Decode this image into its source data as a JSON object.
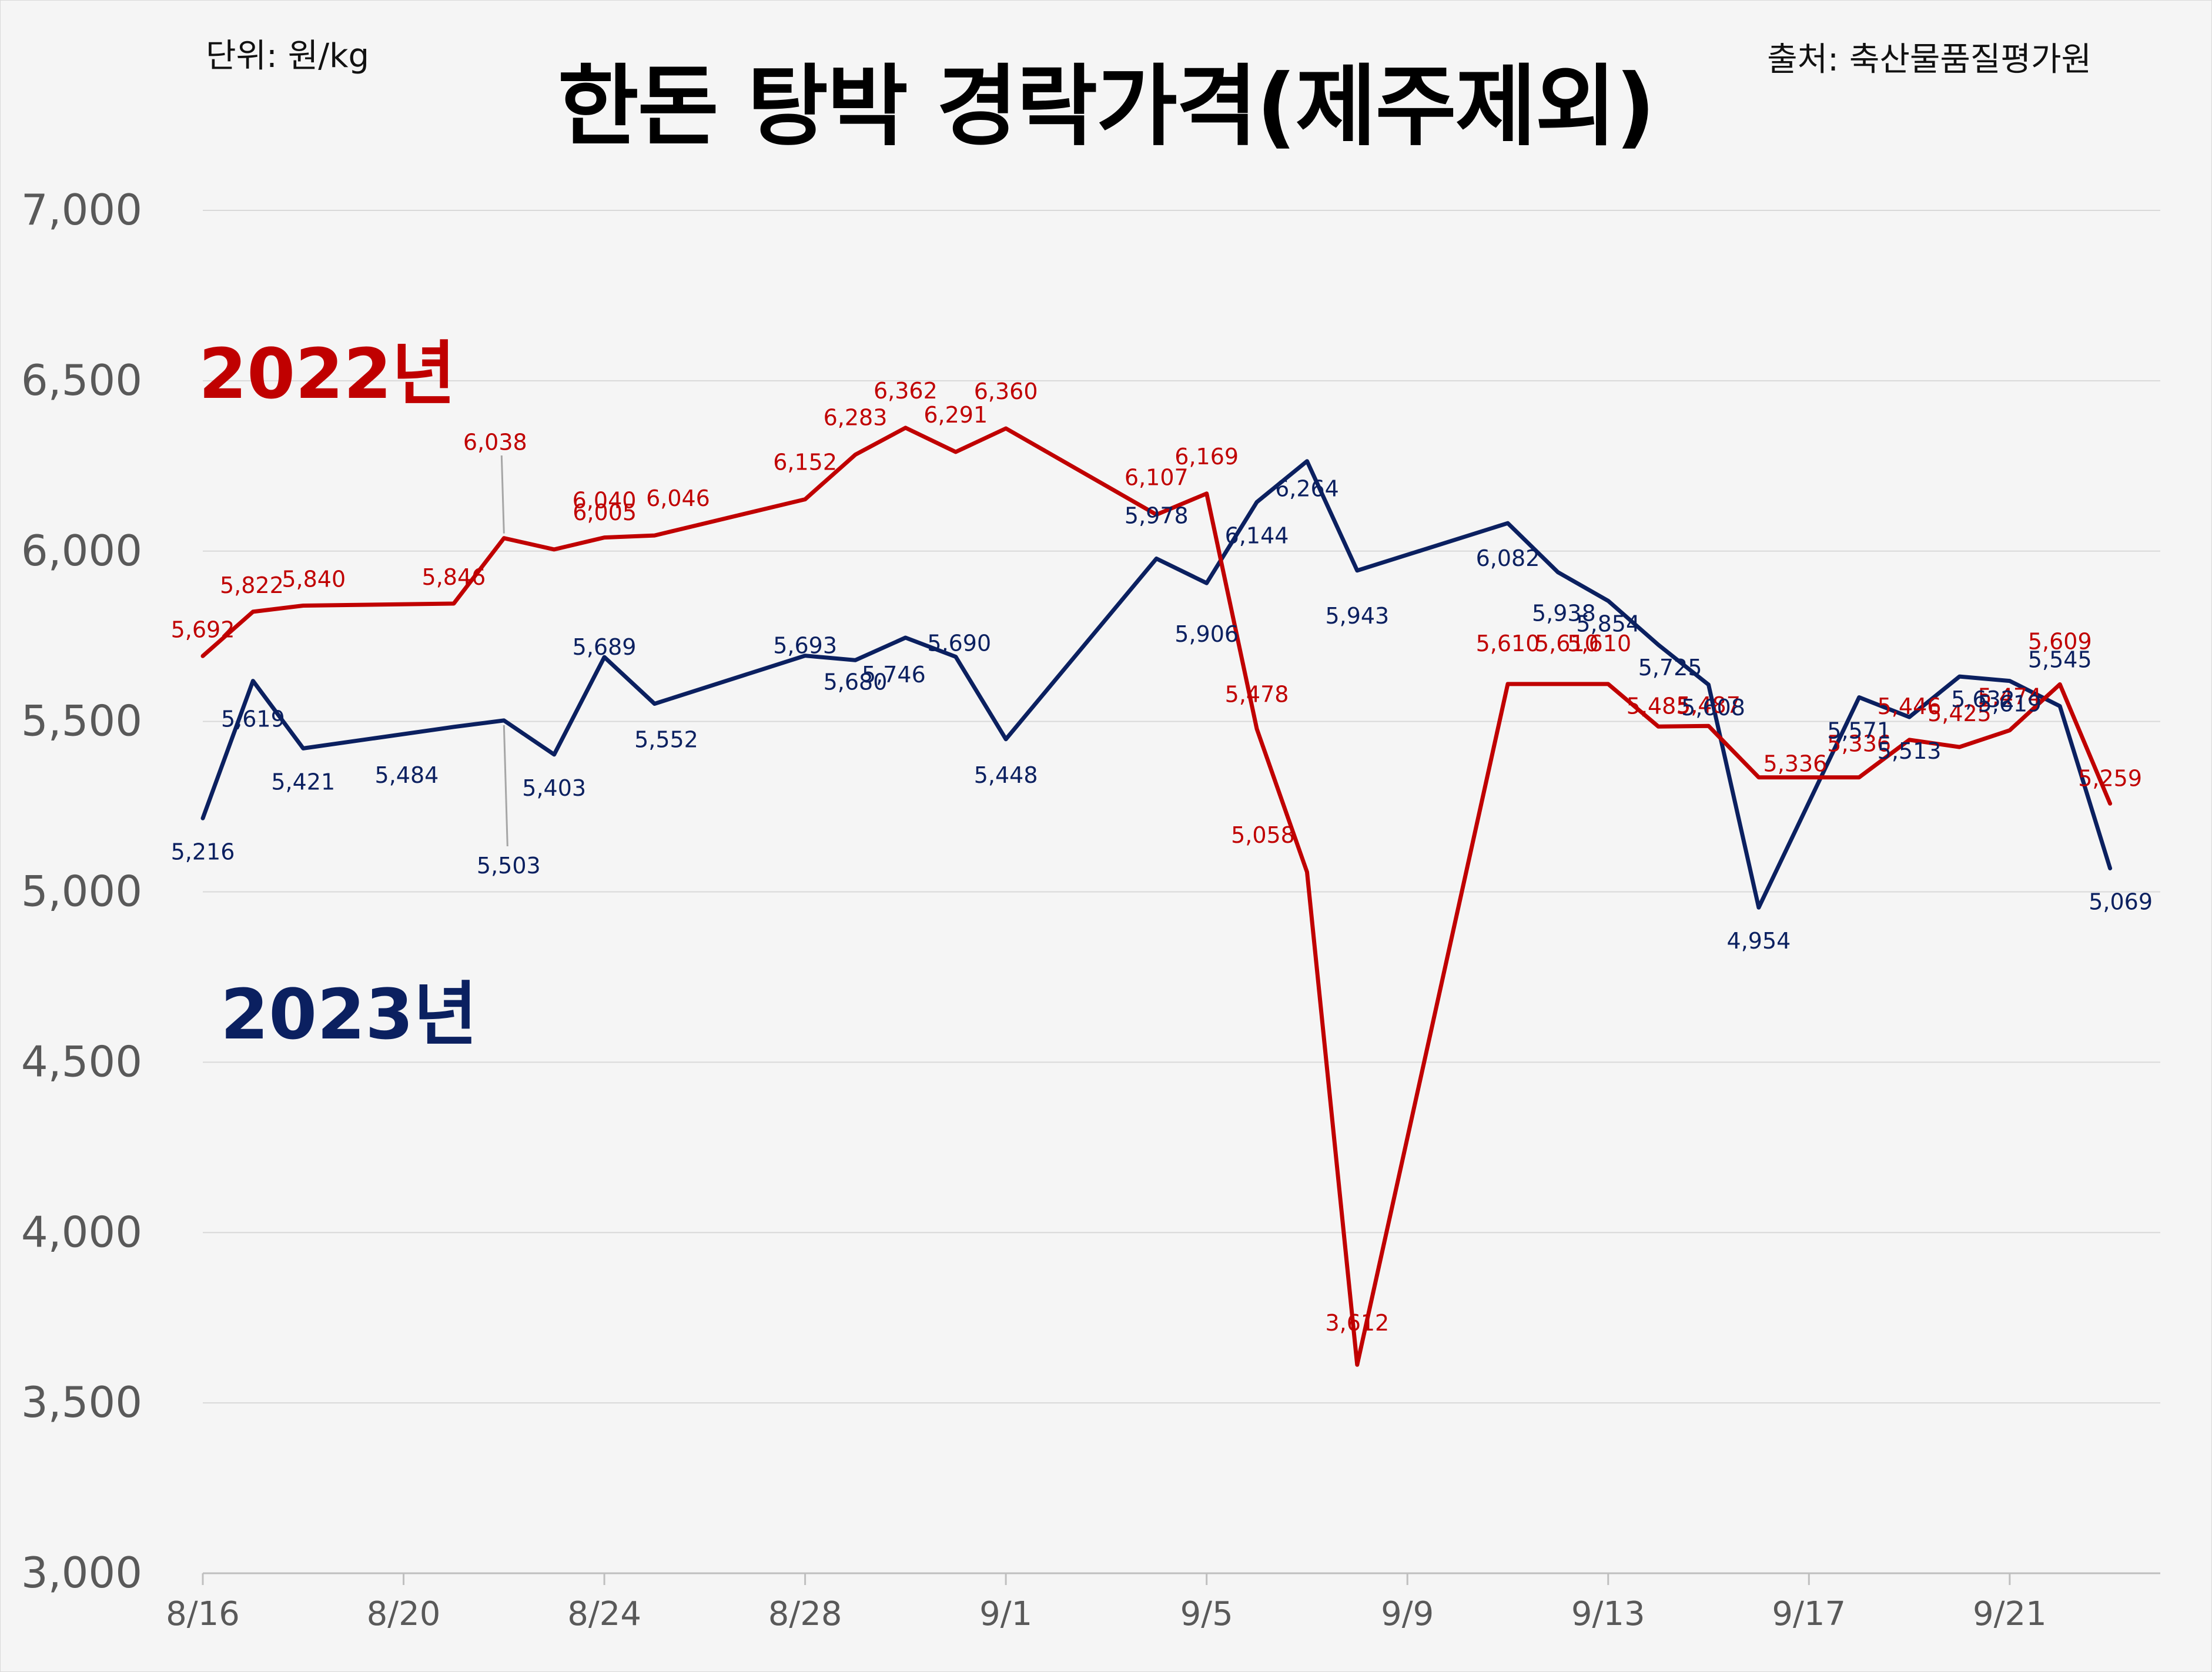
{
  "header": {
    "unit": "단위: 원/kg",
    "source": "출처: 축산물품질평가원"
  },
  "chart_data": {
    "type": "line",
    "title": "한돈 탕박 경락가격(제주제외)",
    "xlabel": "",
    "ylabel": "",
    "ylim": [
      3000,
      7000
    ],
    "yticks": [
      3000,
      3500,
      4000,
      4500,
      5000,
      5500,
      6000,
      6500,
      7000
    ],
    "ytick_labels": [
      "3,000",
      "3,500",
      "4,000",
      "4,500",
      "5,000",
      "5,500",
      "6,000",
      "6,500",
      "7,000"
    ],
    "xlim": [
      "2023-08-16",
      "2023-09-24"
    ],
    "xticks": [
      "2023-08-16",
      "2023-08-20",
      "2023-08-24",
      "2023-08-28",
      "2023-09-01",
      "2023-09-05",
      "2023-09-09",
      "2023-09-13",
      "2023-09-17",
      "2023-09-21"
    ],
    "xtick_labels": [
      "8/16",
      "8/20",
      "8/24",
      "8/28",
      "9/1",
      "9/5",
      "9/9",
      "9/13",
      "9/17",
      "9/21"
    ],
    "grid": true,
    "legend": "none",
    "series": [
      {
        "name": "2022년",
        "color": "#c00000",
        "points": [
          {
            "x": "2023-08-16",
            "y": 5692,
            "label": "5,692"
          },
          {
            "x": "2023-08-17",
            "y": 5822,
            "label": "5,822"
          },
          {
            "x": "2023-08-18",
            "y": 5840,
            "label": "5,840"
          },
          {
            "x": "2023-08-21",
            "y": 5846,
            "label": "5,846"
          },
          {
            "x": "2023-08-22",
            "y": 6038,
            "label": "6,038"
          },
          {
            "x": "2023-08-23",
            "y": 6005,
            "label": "6,005"
          },
          {
            "x": "2023-08-24",
            "y": 6040,
            "label": "6,040"
          },
          {
            "x": "2023-08-25",
            "y": 6046,
            "label": "6,046"
          },
          {
            "x": "2023-08-28",
            "y": 6152,
            "label": "6,152"
          },
          {
            "x": "2023-08-29",
            "y": 6283,
            "label": "6,283"
          },
          {
            "x": "2023-08-30",
            "y": 6362,
            "label": "6,362"
          },
          {
            "x": "2023-08-31",
            "y": 6291,
            "label": "6,291"
          },
          {
            "x": "2023-09-01",
            "y": 6360,
            "label": "6,360"
          },
          {
            "x": "2023-09-04",
            "y": 6107,
            "label": "6,107"
          },
          {
            "x": "2023-09-05",
            "y": 6169,
            "label": "6,169"
          },
          {
            "x": "2023-09-06",
            "y": 5478,
            "label": "5,478"
          },
          {
            "x": "2023-09-07",
            "y": 5058,
            "label": "5,058"
          },
          {
            "x": "2023-09-08",
            "y": 3612,
            "label": "3,612"
          },
          {
            "x": "2023-09-11",
            "y": 5610,
            "label": "5,610"
          },
          {
            "x": "2023-09-12",
            "y": 5610,
            "label": "5,610"
          },
          {
            "x": "2023-09-13",
            "y": 5610,
            "label": "5,610"
          },
          {
            "x": "2023-09-14",
            "y": 5485,
            "label": "5,485"
          },
          {
            "x": "2023-09-15",
            "y": 5487,
            "label": "5,487"
          },
          {
            "x": "2023-09-16",
            "y": 5336,
            "label": "5,336"
          },
          {
            "x": "2023-09-18",
            "y": 5336,
            "label": "5,336"
          },
          {
            "x": "2023-09-19",
            "y": 5446,
            "label": "5,446"
          },
          {
            "x": "2023-09-20",
            "y": 5425,
            "label": "5,425"
          },
          {
            "x": "2023-09-21",
            "y": 5474,
            "label": "5,474"
          },
          {
            "x": "2023-09-22",
            "y": 5609,
            "label": "5,609"
          },
          {
            "x": "2023-09-23",
            "y": 5259,
            "label": "5,259"
          }
        ]
      },
      {
        "name": "2023년",
        "color": "#0b2060",
        "points": [
          {
            "x": "2023-08-16",
            "y": 5216,
            "label": "5,216"
          },
          {
            "x": "2023-08-17",
            "y": 5619,
            "label": "5,619"
          },
          {
            "x": "2023-08-18",
            "y": 5421,
            "label": "5,421"
          },
          {
            "x": "2023-08-21",
            "y": 5484,
            "label": "5,484"
          },
          {
            "x": "2023-08-22",
            "y": 5503,
            "label": "5,503"
          },
          {
            "x": "2023-08-23",
            "y": 5403,
            "label": "5,403"
          },
          {
            "x": "2023-08-24",
            "y": 5689,
            "label": "5,689"
          },
          {
            "x": "2023-08-25",
            "y": 5552,
            "label": "5,552"
          },
          {
            "x": "2023-08-28",
            "y": 5693,
            "label": "5,693"
          },
          {
            "x": "2023-08-29",
            "y": 5680,
            "label": "5,680"
          },
          {
            "x": "2023-08-30",
            "y": 5746,
            "label": "5,746"
          },
          {
            "x": "2023-08-31",
            "y": 5690,
            "label": "5,690"
          },
          {
            "x": "2023-09-01",
            "y": 5448,
            "label": "5,448"
          },
          {
            "x": "2023-09-04",
            "y": 5978,
            "label": "5,978"
          },
          {
            "x": "2023-09-05",
            "y": 5906,
            "label": "5,906"
          },
          {
            "x": "2023-09-06",
            "y": 6144,
            "label": "6,144"
          },
          {
            "x": "2023-09-07",
            "y": 6264,
            "label": "6,264"
          },
          {
            "x": "2023-09-08",
            "y": 5943,
            "label": "5,943"
          },
          {
            "x": "2023-09-11",
            "y": 6082,
            "label": "6,082"
          },
          {
            "x": "2023-09-12",
            "y": 5938,
            "label": "5,938"
          },
          {
            "x": "2023-09-13",
            "y": 5854,
            "label": "5,854"
          },
          {
            "x": "2023-09-14",
            "y": 5725,
            "label": "5,725"
          },
          {
            "x": "2023-09-15",
            "y": 5608,
            "label": "5,608"
          },
          {
            "x": "2023-09-16",
            "y": 4954,
            "label": "4,954"
          },
          {
            "x": "2023-09-18",
            "y": 5571,
            "label": "5,571"
          },
          {
            "x": "2023-09-19",
            "y": 5513,
            "label": "5,513"
          },
          {
            "x": "2023-09-20",
            "y": 5632,
            "label": "5,632"
          },
          {
            "x": "2023-09-21",
            "y": 5619,
            "label": "5,619"
          },
          {
            "x": "2023-09-22",
            "y": 5545,
            "label": "5,545"
          },
          {
            "x": "2023-09-23",
            "y": 5069,
            "label": "5,069"
          }
        ]
      }
    ]
  }
}
